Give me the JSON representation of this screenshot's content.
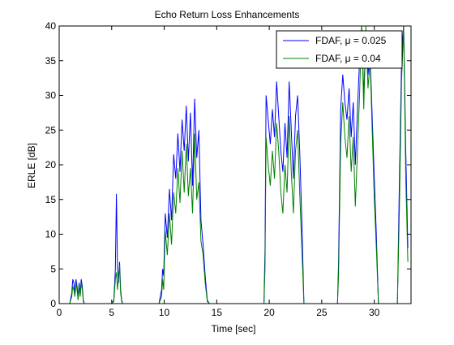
{
  "chart_data": {
    "type": "line",
    "title": "Echo Return Loss Enhancements",
    "xlabel": "Time [sec]",
    "ylabel": "ERLE [dB]",
    "xlim": [
      0,
      33.5
    ],
    "ylim": [
      0,
      40
    ],
    "xticks": [
      0,
      5,
      10,
      15,
      20,
      25,
      30
    ],
    "yticks": [
      0,
      5,
      10,
      15,
      20,
      25,
      30,
      35,
      40
    ],
    "grid": false,
    "legend": "top-right",
    "series": [
      {
        "name": "FDAF, μ = 0.025",
        "color": "#0000ff",
        "x": [
          0.0,
          1.0,
          1.2,
          1.3,
          1.4,
          1.5,
          1.6,
          1.7,
          1.8,
          1.9,
          2.0,
          2.1,
          2.2,
          2.3,
          2.4,
          2.5,
          5.0,
          5.2,
          5.35,
          5.45,
          5.55,
          5.65,
          5.75,
          5.85,
          5.95,
          6.05,
          9.5,
          9.75,
          9.85,
          9.95,
          10.1,
          10.3,
          10.5,
          10.7,
          10.9,
          11.1,
          11.3,
          11.5,
          11.7,
          11.9,
          12.1,
          12.3,
          12.5,
          12.7,
          12.9,
          13.1,
          13.3,
          13.5,
          13.7,
          13.9,
          14.1,
          14.3,
          19.5,
          19.6,
          19.7,
          19.9,
          20.1,
          20.3,
          20.5,
          20.7,
          20.9,
          21.1,
          21.3,
          21.5,
          21.7,
          21.9,
          22.1,
          22.3,
          22.5,
          22.7,
          22.9,
          23.1,
          23.3,
          26.5,
          26.6,
          26.8,
          27.0,
          27.2,
          27.4,
          27.6,
          27.8,
          28.0,
          28.2,
          28.4,
          28.6,
          28.8,
          29.0,
          29.2,
          29.4,
          29.6,
          29.8,
          30.0,
          30.2,
          30.4,
          32.2,
          32.4,
          32.6,
          32.8,
          33.0,
          33.2
        ],
        "y": [
          0,
          0,
          1.5,
          3.5,
          3.0,
          1.5,
          3.5,
          2.5,
          1.0,
          3.0,
          1.5,
          3.5,
          2.5,
          0.5,
          0,
          0,
          0,
          0.5,
          5.0,
          15.8,
          5.5,
          3.0,
          6.0,
          2.0,
          0.5,
          0,
          0,
          2.0,
          5.0,
          4.0,
          13.0,
          9.5,
          16.5,
          12.0,
          21.5,
          18.0,
          24.5,
          19.0,
          26.5,
          22.0,
          28.5,
          20.5,
          27.5,
          17.0,
          29.5,
          21.0,
          25.0,
          12.0,
          8.5,
          4.0,
          0.5,
          0,
          0,
          8.0,
          30.0,
          26.5,
          23.0,
          28.0,
          24.0,
          32.0,
          27.0,
          22.0,
          19.0,
          26.0,
          21.0,
          32.0,
          25.0,
          18.0,
          27.0,
          30.0,
          22.0,
          12.0,
          0,
          0,
          6.0,
          28.0,
          33.0,
          29.0,
          26.5,
          31.0,
          24.0,
          29.0,
          20.0,
          28.0,
          35.0,
          40.0,
          30.0,
          38.5,
          33.0,
          36.0,
          27.0,
          18.0,
          10.0,
          0,
          0,
          18.0,
          35.0,
          40.0,
          22.0,
          8.0
        ],
        "values_are_estimated": true
      },
      {
        "name": "FDAF, μ = 0.04",
        "color": "#008000",
        "x": [
          0.0,
          1.0,
          1.2,
          1.3,
          1.4,
          1.5,
          1.6,
          1.7,
          1.8,
          1.9,
          2.0,
          2.1,
          2.2,
          2.3,
          2.4,
          2.5,
          5.0,
          5.2,
          5.35,
          5.45,
          5.55,
          5.65,
          5.75,
          5.85,
          5.95,
          6.05,
          9.5,
          9.75,
          9.85,
          9.95,
          10.1,
          10.3,
          10.5,
          10.7,
          10.9,
          11.1,
          11.3,
          11.5,
          11.7,
          11.9,
          12.1,
          12.3,
          12.5,
          12.7,
          12.9,
          13.1,
          13.3,
          13.5,
          13.7,
          13.9,
          14.1,
          14.3,
          19.5,
          19.6,
          19.7,
          19.9,
          20.1,
          20.3,
          20.5,
          20.7,
          20.9,
          21.1,
          21.3,
          21.5,
          21.7,
          21.9,
          22.1,
          22.3,
          22.5,
          22.7,
          22.9,
          23.1,
          23.3,
          26.5,
          26.6,
          26.8,
          27.0,
          27.2,
          27.4,
          27.6,
          27.8,
          28.0,
          28.2,
          28.4,
          28.6,
          28.8,
          29.0,
          29.2,
          29.4,
          29.6,
          29.8,
          30.0,
          30.2,
          30.4,
          32.2,
          32.4,
          32.6,
          32.8,
          33.0,
          33.2
        ],
        "y": [
          0,
          0,
          1.0,
          2.5,
          2.0,
          1.0,
          3.0,
          2.0,
          0.5,
          2.5,
          1.0,
          3.0,
          2.0,
          0.3,
          0,
          0,
          0,
          0.3,
          3.5,
          4.5,
          2.0,
          4.0,
          5.5,
          1.5,
          0.3,
          0,
          0,
          1.0,
          3.5,
          2.0,
          10.5,
          7.0,
          13.0,
          8.5,
          16.0,
          13.0,
          19.5,
          14.5,
          22.0,
          16.0,
          23.0,
          15.5,
          19.5,
          13.0,
          24.5,
          15.0,
          17.5,
          9.0,
          7.0,
          3.0,
          0.3,
          0,
          0,
          5.0,
          24.0,
          20.0,
          17.0,
          22.0,
          18.0,
          26.0,
          22.0,
          16.0,
          13.0,
          20.0,
          16.0,
          27.0,
          19.0,
          13.0,
          22.0,
          25.0,
          16.0,
          8.0,
          0,
          0,
          4.0,
          23.0,
          29.0,
          24.0,
          21.0,
          27.0,
          19.0,
          24.0,
          14.0,
          22.0,
          30.0,
          40.0,
          28.0,
          40.0,
          31.0,
          35.0,
          25.0,
          15.0,
          8.0,
          0,
          0,
          14.0,
          32.0,
          40.0,
          18.0,
          6.0
        ],
        "values_are_estimated": true
      }
    ]
  },
  "axes_color": "#000000"
}
